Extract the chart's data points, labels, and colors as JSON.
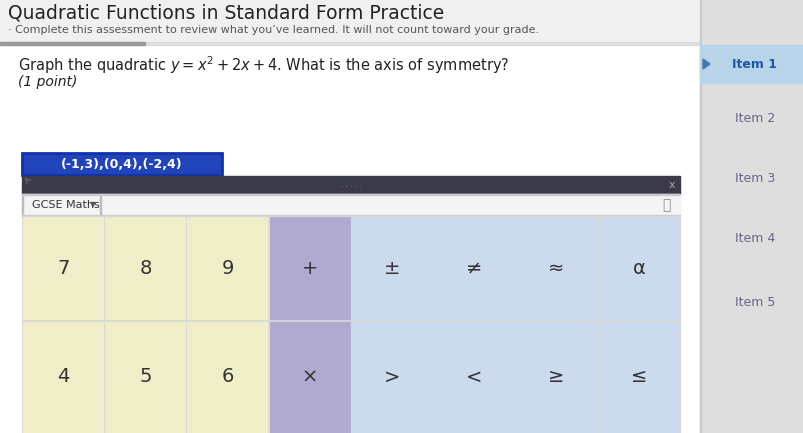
{
  "title": "Quadratic Functions in Standard Form Practice",
  "subtitle": "· Complete this assessment to review what you’ve learned. It will not count toward your grade.",
  "question_plain": "Graph the quadratic ",
  "question_math": "y = x² + 2x + 4",
  "question_suffix": ". What is the axis of symmetry?",
  "point_label": "(1 point)",
  "answer_text": "(-1,3),(0,4),(-2,4)",
  "keyboard_label": "GCSE Maths",
  "num_row1": [
    "7",
    "8",
    "9",
    "+",
    "±",
    "≠",
    "≈",
    "α"
  ],
  "num_row2": [
    "4",
    "5",
    "6",
    "×",
    ">",
    "<",
    "≥",
    "≤"
  ],
  "items": [
    "Item 1",
    "Item 2",
    "Item 3",
    "Item 4",
    "Item 5"
  ],
  "bg_color": "#eeeeee",
  "content_bg": "#f8f8f8",
  "title_bg": "#f0f0f0",
  "title_color": "#222222",
  "subtitle_color": "#555555",
  "item1_bg": "#b8d4e8",
  "item_panel_bg": "#dedede",
  "item_text_color": "#666688",
  "item1_text_color": "#2255aa",
  "answer_box_bg": "#2244bb",
  "answer_box_border": "#1133aa",
  "answer_text_color": "#ffffff",
  "keyboard_bg": "#3a3a4a",
  "keyboard_bar_bg": "#f4f4f4",
  "num_bg_yellow": "#f0eec8",
  "num_bg_purple": "#b0aad0",
  "num_bg_blue": "#ccdaee",
  "num_border": "#d8d8d8",
  "top_bar_light": "#dddddd",
  "top_bar_dark": "#999999",
  "panel_divider": "#cccccc"
}
